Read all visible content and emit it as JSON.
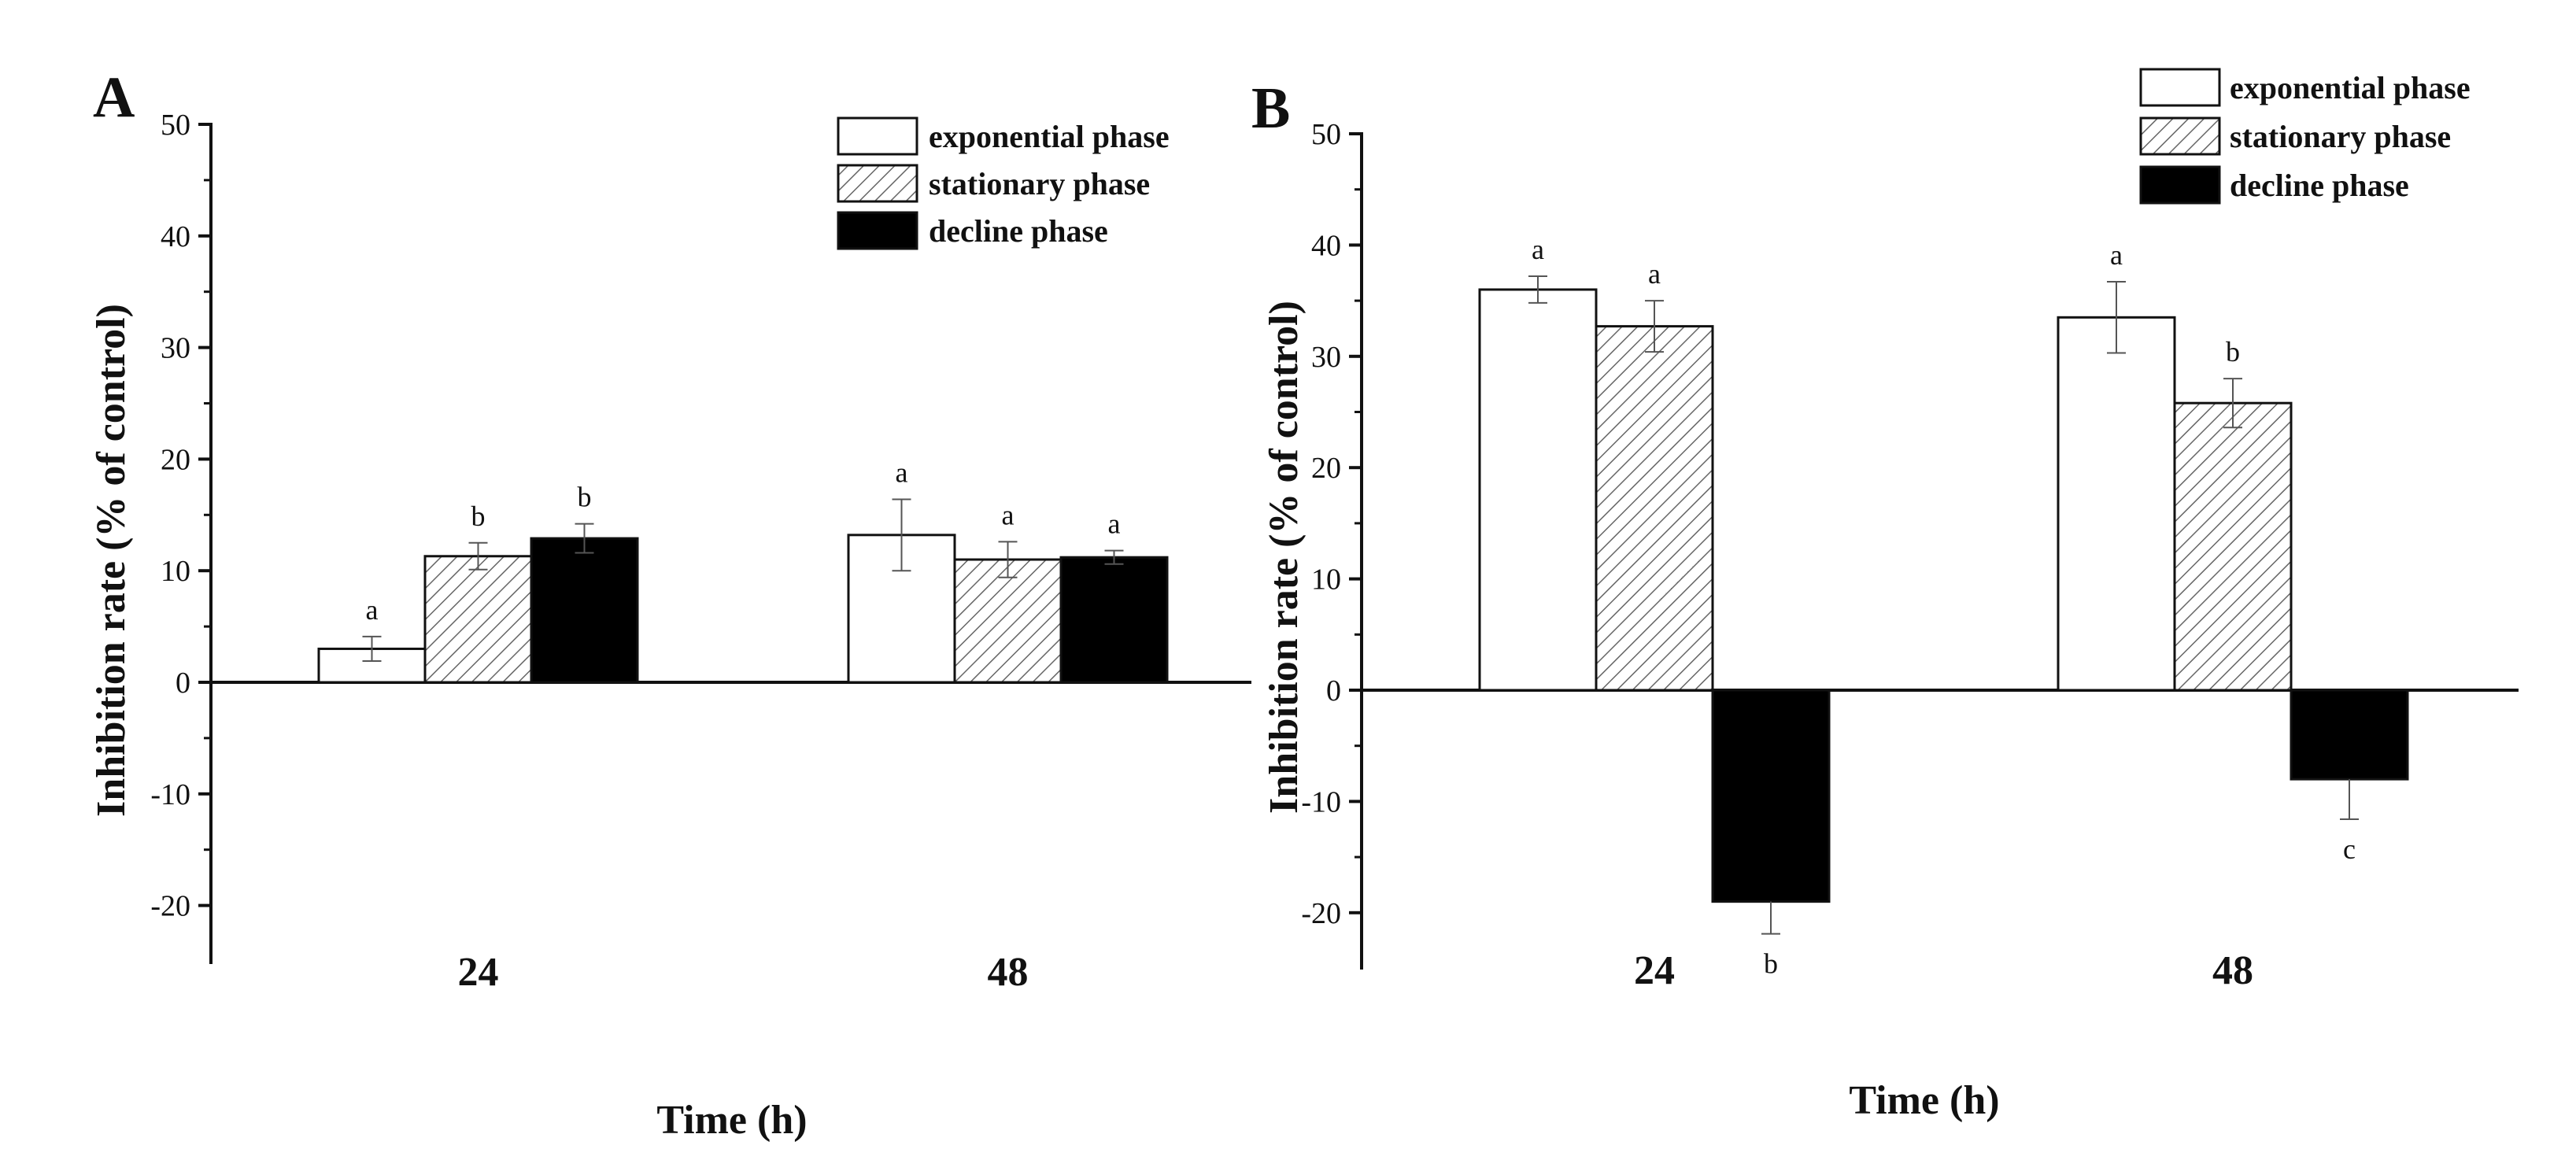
{
  "figure_type": "grouped bar chart with error bars",
  "colors": {
    "axis": "#111111",
    "exponential_fill": "#ffffff",
    "stationary_hatch": "#666666",
    "decline_fill": "#000000",
    "error_bar": "#555555"
  },
  "chart_data": [
    {
      "type": "bar",
      "panel": "A",
      "title": "",
      "xlabel": "Time (h)",
      "ylabel": "Inhibition rate (% of control)",
      "ylim": [
        -25,
        50
      ],
      "yticks": [
        -20,
        -10,
        0,
        10,
        20,
        30,
        40,
        50
      ],
      "categories": [
        "24",
        "48"
      ],
      "legend_position": "top-right",
      "series": [
        {
          "name": "exponential phase",
          "pattern": "white",
          "values": [
            3,
            13.2
          ],
          "errors": [
            1.1,
            3.2
          ],
          "sig": [
            "a",
            "a"
          ]
        },
        {
          "name": "stationary phase",
          "pattern": "hatched",
          "values": [
            11.3,
            11
          ],
          "errors": [
            1.2,
            1.6
          ],
          "sig": [
            "b",
            "a"
          ]
        },
        {
          "name": "decline phase",
          "pattern": "black",
          "values": [
            12.9,
            11.2
          ],
          "errors": [
            1.3,
            0.6
          ],
          "sig": [
            "b",
            "a"
          ]
        }
      ]
    },
    {
      "type": "bar",
      "panel": "B",
      "title": "",
      "xlabel": "Time (h)",
      "ylabel": "Inhibition rate (% of control)",
      "ylim": [
        -25,
        50
      ],
      "yticks": [
        -20,
        -10,
        0,
        10,
        20,
        30,
        40,
        50
      ],
      "categories": [
        "24",
        "48"
      ],
      "legend_position": "top-right",
      "series": [
        {
          "name": "exponential phase",
          "pattern": "white",
          "values": [
            36,
            33.5
          ],
          "errors": [
            1.2,
            3.2
          ],
          "sig": [
            "a",
            "a"
          ]
        },
        {
          "name": "stationary phase",
          "pattern": "hatched",
          "values": [
            32.7,
            25.8
          ],
          "errors": [
            2.3,
            2.2
          ],
          "sig": [
            "a",
            "b"
          ]
        },
        {
          "name": "decline phase",
          "pattern": "black",
          "values": [
            -19,
            -8
          ],
          "errors": [
            2.9,
            3.6
          ],
          "sig": [
            "b",
            "c"
          ]
        }
      ]
    }
  ]
}
